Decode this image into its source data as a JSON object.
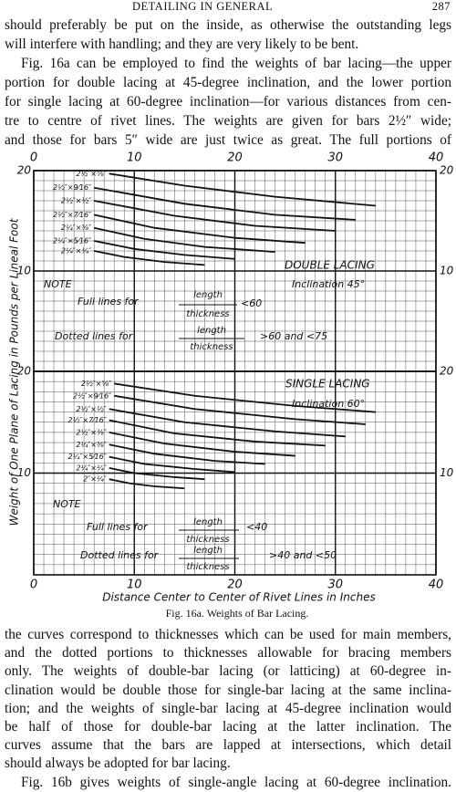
{
  "header": {
    "title": "DETAILING IN GENERAL",
    "page": "287"
  },
  "body_top": [
    [
      "should preferably be put on the inside, as otherwise the outstanding legs",
      "will interfere with handling; and they are very likely to be bent."
    ],
    [
      "Fig. 16a can be employed to find the weights of bar lacing—the upper",
      "portion for double lacing at 45-degree inclination, and the lower portion",
      "for single lacing at 60-degree inclination—for various distances from cen-",
      "tre to centre of rivet lines.  The weights are given for bars 2½″ wide;",
      "and those for bars 5″ wide are just twice as great.  The full portions of"
    ]
  ],
  "chart_data": [
    {
      "type": "line",
      "ylabel": "Weight of One Plane of Lacing in Pounds per Lineal Foot",
      "xlim": [
        0,
        40
      ],
      "xticks": [
        0,
        10,
        20,
        30,
        40
      ],
      "ylim": [
        0,
        20
      ],
      "yticks": [
        10,
        20
      ],
      "grid": true,
      "color": "#111111",
      "annotations": [
        "DOUBLE LACING",
        "Inclination 45°",
        "NOTE",
        "Full lines for",
        "length",
        "thickness",
        "<60",
        "Dotted lines for",
        "length",
        "thickness",
        ">60 and <75"
      ],
      "series": [
        {
          "name": "2½″×⅝″",
          "x": [
            7.5,
            15,
            24,
            34
          ],
          "values": [
            19.7,
            18.5,
            17.4,
            16.5
          ]
        },
        {
          "name": "2½″×9⁄16″",
          "x": [
            6,
            15,
            24,
            32
          ],
          "values": [
            18.3,
            16.7,
            15.6,
            15.1
          ]
        },
        {
          "name": "2½″×½″",
          "x": [
            6,
            14,
            22,
            30
          ],
          "values": [
            17,
            15.5,
            14.5,
            14
          ]
        },
        {
          "name": "2½″×7⁄16″",
          "x": [
            6,
            12,
            20,
            27
          ],
          "values": [
            15.6,
            14.3,
            13.3,
            12.8
          ]
        },
        {
          "name": "2¼″×⅜″",
          "x": [
            6,
            11,
            17,
            24
          ],
          "values": [
            14.3,
            13.2,
            12.4,
            11.9
          ]
        },
        {
          "name": "2¼″×5⁄16″",
          "x": [
            6,
            10,
            15,
            20
          ],
          "values": [
            13,
            12.2,
            11.6,
            11.2
          ]
        },
        {
          "name": "2¼″×¼″",
          "x": [
            6,
            9,
            13,
            17
          ],
          "values": [
            12,
            11.4,
            10.9,
            10.6
          ]
        }
      ]
    },
    {
      "type": "line",
      "xlabel": "Distance Center to Center of Rivet Lines in Inches",
      "xlim": [
        0,
        40
      ],
      "xticks": [
        0,
        10,
        20,
        30,
        40
      ],
      "ylim": [
        0,
        20
      ],
      "yticks": [
        10,
        20
      ],
      "grid": true,
      "color": "#111111",
      "annotations": [
        "SINGLE LACING",
        "Inclination 60°",
        "NOTE",
        "Full lines for",
        "length",
        "thickness",
        "<40",
        "Dotted lines for",
        "length",
        "thickness",
        ">40 and <50"
      ],
      "series": [
        {
          "name": "2½″×⅝″",
          "x": [
            8,
            16,
            26,
            34
          ],
          "values": [
            18.8,
            17.6,
            16.6,
            16
          ]
        },
        {
          "name": "2½″×9⁄16″",
          "x": [
            8,
            16,
            26,
            33
          ],
          "values": [
            17.6,
            16.3,
            15.3,
            14.8
          ]
        },
        {
          "name": "2½″×½″",
          "x": [
            7.5,
            15,
            24,
            31
          ],
          "values": [
            16.3,
            15,
            14.1,
            13.6
          ]
        },
        {
          "name": "2½″×7⁄16″",
          "x": [
            7.5,
            14,
            22,
            29
          ],
          "values": [
            15.2,
            13.9,
            13.1,
            12.7
          ]
        },
        {
          "name": "2½″×⅜″",
          "x": [
            7.5,
            13,
            20,
            26
          ],
          "values": [
            14,
            12.9,
            12.1,
            11.7
          ]
        },
        {
          "name": "2¼″×⅜″",
          "x": [
            7.5,
            12,
            18,
            23
          ],
          "values": [
            12.8,
            11.9,
            11.2,
            10.9
          ]
        },
        {
          "name": "2¼″×5⁄16″",
          "x": [
            7.5,
            11,
            16,
            20
          ],
          "values": [
            11.6,
            10.9,
            10.4,
            10.1
          ]
        },
        {
          "name": "2¼″×¼″",
          "x": [
            7.5,
            10,
            14,
            17
          ],
          "values": [
            10.5,
            10,
            9.6,
            9.4
          ]
        },
        {
          "name": "2″×¼″",
          "x": [
            7.5,
            9.5,
            12,
            15
          ],
          "values": [
            9.4,
            9,
            8.7,
            8.5
          ]
        }
      ]
    }
  ],
  "figure_caption": "Fig. 16a.  Weights of Bar Lacing.",
  "body_bottom": [
    [
      "the curves correspond to thicknesses which can be used for main members,",
      "and the dotted portions to thicknesses allowable for bracing members",
      "only.  The weights of double-bar lacing (or latticing) at 60-degree in-",
      "clination would be double those for single-bar lacing at the same inclina-",
      "tion; and the weights of single-bar lacing at 45-degree inclination would",
      "be half of those for double-bar lacing at the latter inclination.  The",
      "curves assume that the bars are lapped at intersections, which detail",
      "should always be adopted for bar lacing."
    ],
    [
      "Fig. 16b gives weights of single-angle lacing at 60-degree inclination."
    ]
  ]
}
